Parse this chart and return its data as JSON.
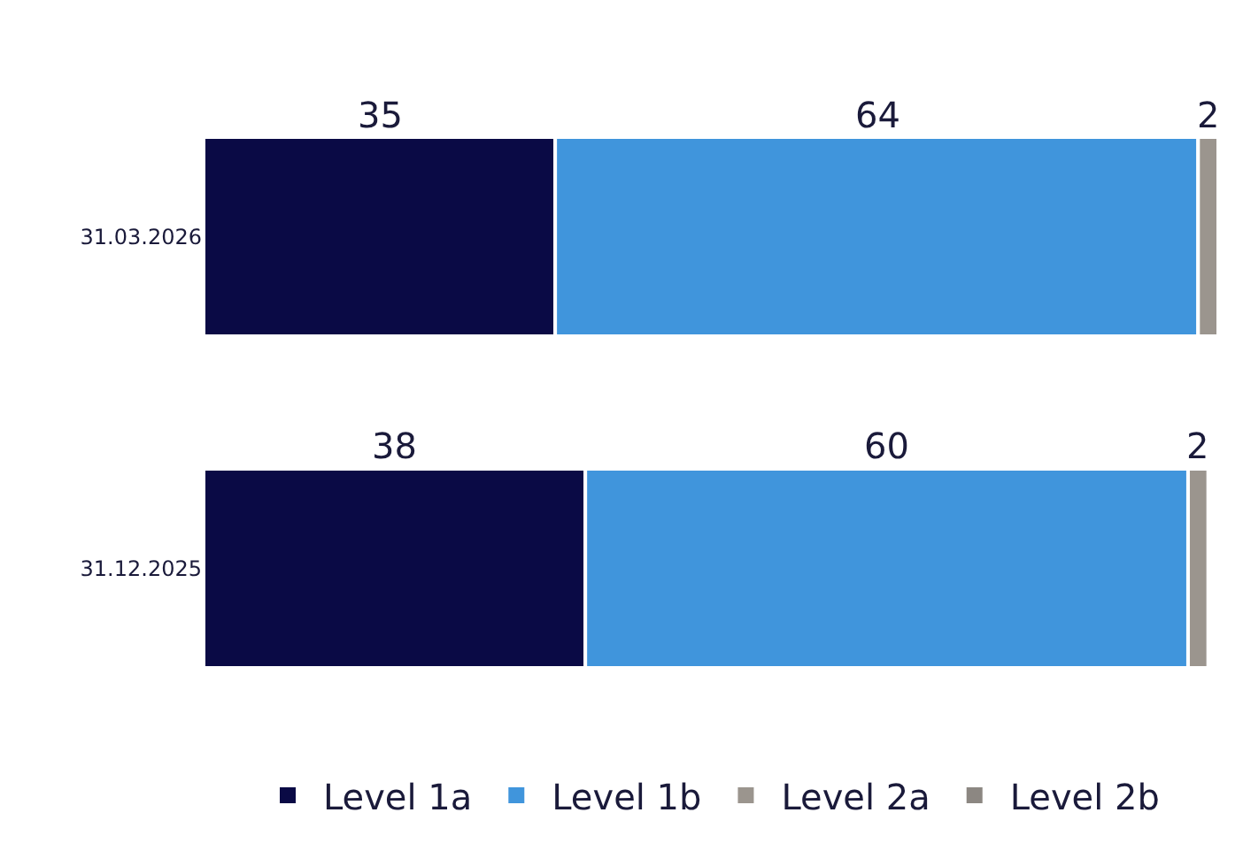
{
  "chart_data": {
    "type": "bar",
    "orientation": "horizontal",
    "stacked": true,
    "categories": [
      "31.03.2026",
      "31.12.2025"
    ],
    "series": [
      {
        "name": "Level 1a",
        "color": "#0a0a45",
        "values": [
          35,
          38
        ]
      },
      {
        "name": "Level 1b",
        "color": "#4095dc",
        "values": [
          64,
          60
        ]
      },
      {
        "name": "Level 2a",
        "color": "#9b958e",
        "values": [
          2,
          2
        ]
      },
      {
        "name": "Level 2b",
        "color": "#8c8782",
        "values": [
          null,
          null
        ]
      }
    ],
    "data_labels": true,
    "legend": "bottom"
  }
}
